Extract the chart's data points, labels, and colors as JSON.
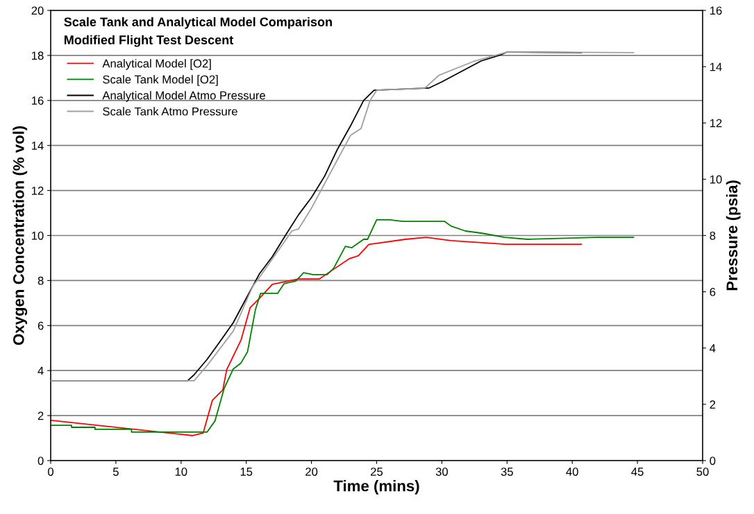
{
  "chart_data": {
    "type": "line",
    "title": "Scale Tank and Analytical Model Comparison",
    "subtitle": "Modified Flight Test Descent",
    "xlabel": "Time (mins)",
    "ylabel": "Oxygen Concentration (% vol)",
    "y2label": "Pressure (psia)",
    "xlim": [
      0,
      50
    ],
    "xticks": [
      0,
      5,
      10,
      15,
      20,
      25,
      30,
      35,
      40,
      45,
      50
    ],
    "ylim": [
      0,
      20
    ],
    "yticks": [
      0,
      2,
      4,
      6,
      8,
      10,
      12,
      14,
      16,
      18,
      20
    ],
    "y2lim": [
      0,
      16
    ],
    "y2ticks": [
      0,
      2,
      4,
      6,
      8,
      10,
      12,
      14,
      16
    ],
    "grid": "y",
    "legend": "top left",
    "marker": "none",
    "line_style": "solid",
    "series": [
      {
        "name": "Analytical Model [O2]",
        "color": "#ff0000",
        "x": [
          0,
          10.9,
          11.7,
          12.4,
          13.2,
          13.5,
          14.6,
          15.3,
          16,
          17,
          19,
          20.6,
          21.8,
          22.9,
          23.6,
          24.4,
          27.2,
          28.8,
          30.7,
          34.9,
          40.7
        ],
        "values": [
          1.79,
          1.11,
          1.23,
          2.68,
          3.14,
          4.04,
          5.36,
          6.8,
          7.2,
          7.83,
          8.07,
          8.07,
          8.54,
          8.97,
          9.1,
          9.6,
          9.83,
          9.92,
          9.77,
          9.61,
          9.61
        ]
      },
      {
        "name": "Scale Tank Model [O2]",
        "color": "#008000",
        "x": [
          0,
          1.6,
          1.6,
          3.4,
          3.4,
          6.2,
          6.2,
          12.0,
          12.6,
          13.3,
          14,
          14.6,
          15.1,
          15.7,
          16.1,
          17.4,
          17.9,
          18.8,
          19.4,
          20.1,
          21.2,
          21.7,
          22.6,
          23.1,
          24,
          24.3,
          25.0,
          26,
          27,
          30.2,
          30.7,
          31.8,
          33.1,
          34.8,
          36.6,
          41.9,
          44.7
        ],
        "values": [
          1.57,
          1.57,
          1.48,
          1.48,
          1.39,
          1.39,
          1.27,
          1.27,
          1.76,
          3.2,
          4.07,
          4.34,
          4.84,
          6.7,
          7.43,
          7.43,
          7.86,
          7.98,
          8.35,
          8.26,
          8.26,
          8.54,
          9.52,
          9.46,
          9.83,
          9.83,
          10.7,
          10.7,
          10.63,
          10.63,
          10.42,
          10.2,
          10.1,
          9.92,
          9.83,
          9.92,
          9.92
        ]
      },
      {
        "name": "Analytical Model Atmo Pressure",
        "color": "#000000",
        "axis": "y2",
        "x": [
          0,
          10.5,
          11,
          12,
          13,
          14,
          15,
          16,
          17,
          18,
          19,
          20,
          21,
          22,
          23,
          24,
          24.8,
          29,
          30,
          33,
          34.5,
          35,
          40.7
        ],
        "values": [
          2.84,
          2.84,
          3.05,
          3.6,
          4.24,
          4.9,
          5.77,
          6.63,
          7.25,
          8.0,
          8.73,
          9.35,
          10.1,
          11.07,
          11.9,
          12.8,
          13.16,
          13.24,
          13.46,
          14.2,
          14.42,
          14.52,
          14.5
        ]
      },
      {
        "name": "Scale Tank Atmo Pressure",
        "color": "#a0a0a0",
        "axis": "y2",
        "x": [
          0,
          11,
          12,
          14,
          15.5,
          16,
          18.5,
          19,
          20,
          22,
          23,
          23.8,
          24.5,
          25,
          28.7,
          29.8,
          32.5,
          35,
          44.7
        ],
        "values": [
          2.84,
          2.84,
          3.38,
          4.6,
          6.2,
          6.5,
          8.16,
          8.23,
          8.97,
          10.7,
          11.56,
          11.8,
          12.8,
          13.16,
          13.24,
          13.7,
          14.2,
          14.52,
          14.5
        ]
      }
    ]
  }
}
